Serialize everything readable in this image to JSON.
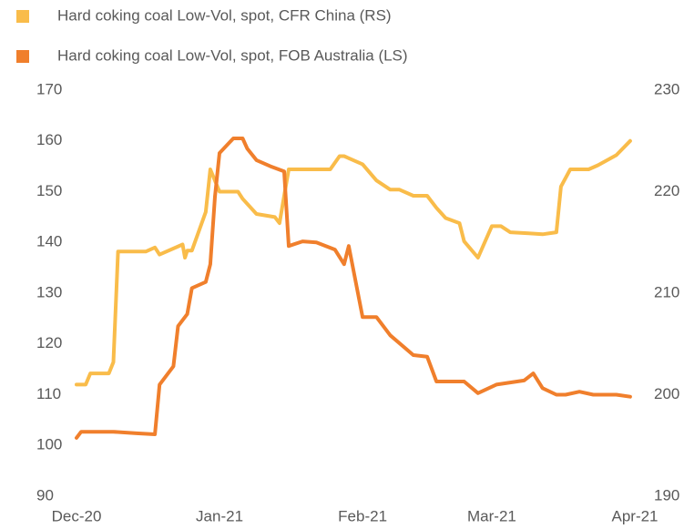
{
  "chart_data": {
    "type": "line",
    "legend": "top-left",
    "xlim": [
      0,
      121
    ],
    "xticks": [
      {
        "value": 0,
        "label": "Dec-20"
      },
      {
        "value": 31,
        "label": "Jan-21"
      },
      {
        "value": 62,
        "label": "Feb-21"
      },
      {
        "value": 90,
        "label": "Mar-21"
      },
      {
        "value": 121,
        "label": "Apr-21"
      }
    ],
    "ylim": [
      90,
      170
    ],
    "yticks": [
      90,
      100,
      110,
      120,
      130,
      140,
      150,
      160,
      170
    ],
    "y2lim": [
      190,
      230
    ],
    "y2ticks": [
      190,
      200,
      210,
      220,
      230
    ],
    "series": [
      {
        "name": "Hard coking coal Low-Vol, spot, CFR China (RS)",
        "color": "#f9bc4a",
        "axis": "y2",
        "x": [
          0,
          2,
          3,
          7,
          8,
          9,
          15,
          17,
          18,
          23,
          23.5,
          24,
          25,
          28,
          29,
          31,
          35,
          36,
          39,
          43,
          44,
          45,
          46,
          55,
          57,
          58,
          62,
          65,
          68,
          70,
          73,
          76,
          78,
          80,
          83,
          84,
          87,
          90,
          92,
          94,
          98,
          101,
          104,
          105,
          107,
          111,
          113,
          117,
          120
        ],
        "values": [
          201,
          201,
          202.1,
          202.1,
          203.2,
          214.1,
          214.1,
          214.5,
          213.8,
          214.8,
          213.5,
          214.2,
          214.2,
          218,
          222.2,
          220,
          220,
          219.3,
          217.8,
          217.5,
          216.9,
          219.6,
          222.2,
          222.2,
          223.5,
          223.5,
          222.7,
          221.1,
          220.2,
          220.2,
          219.6,
          219.6,
          218.4,
          217.4,
          216.9,
          215.1,
          213.5,
          216.6,
          216.6,
          216,
          215.9,
          215.8,
          216,
          220.5,
          222.2,
          222.2,
          222.6,
          223.6,
          225
        ]
      },
      {
        "name": "Hard coking coal Low-Vol, spot, FOB Australia (LS)",
        "color": "#f07f2c",
        "x": [
          0,
          1,
          8,
          13,
          17,
          18,
          21,
          22,
          24,
          25,
          28,
          29,
          30,
          31,
          34,
          36,
          37,
          39,
          42,
          45,
          46,
          49,
          52,
          56,
          58,
          59,
          62,
          65,
          68,
          73,
          76,
          78,
          84,
          87,
          91,
          97,
          99,
          101,
          104,
          106,
          109,
          112,
          117,
          120
        ],
        "values": [
          101.5,
          102.7,
          102.7,
          102.4,
          102.2,
          112,
          115.6,
          123.5,
          125.9,
          131,
          132.2,
          135.7,
          149,
          157.6,
          160.5,
          160.5,
          158.5,
          156.2,
          155,
          154,
          139.3,
          140.2,
          140,
          138.6,
          135.7,
          139.3,
          125.3,
          125.3,
          121.7,
          117.8,
          117.5,
          112.6,
          112.6,
          110.3,
          112,
          112.8,
          114.2,
          111.3,
          110,
          110,
          110.6,
          110,
          110,
          109.6
        ]
      }
    ]
  }
}
